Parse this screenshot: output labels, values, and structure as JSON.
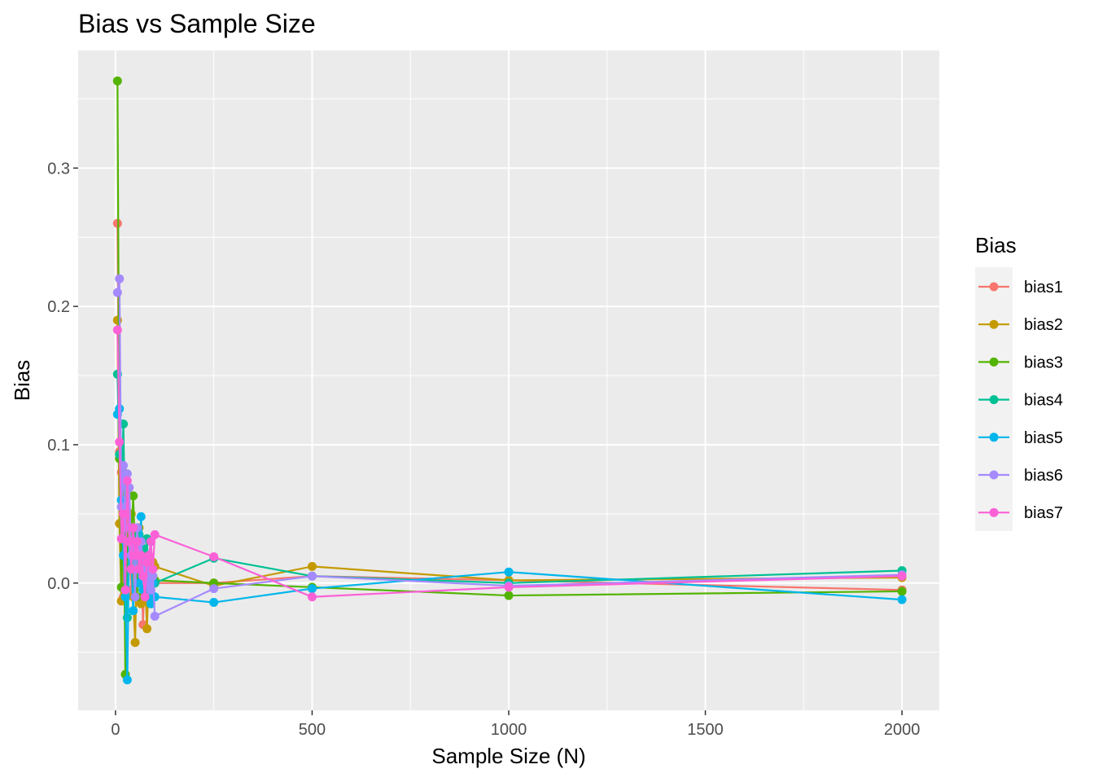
{
  "chart_data": {
    "type": "line",
    "title": "Bias vs Sample Size",
    "xlabel": "Sample Size (N)",
    "ylabel": "Bias",
    "xlim": [
      -95,
      2095
    ],
    "ylim": [
      -0.092,
      0.385
    ],
    "x_ticks": [
      0,
      500,
      1000,
      1500,
      2000
    ],
    "x_tick_labels": [
      "0",
      "500",
      "1000",
      "1500",
      "2000"
    ],
    "y_ticks": [
      0.0,
      0.1,
      0.2,
      0.3
    ],
    "y_tick_labels": [
      "0.0",
      "0.1",
      "0.2",
      "0.3"
    ],
    "grid": true,
    "legend_title": "Bias",
    "legend_position": "right",
    "series": [
      {
        "name": "bias1",
        "color": "#F8766D",
        "x": [
          5,
          10,
          15,
          20,
          25,
          30,
          35,
          40,
          45,
          50,
          55,
          60,
          65,
          70,
          75,
          80,
          85,
          90,
          95,
          100,
          250,
          500,
          1000,
          2000
        ],
        "y": [
          0.26,
          0.095,
          0.08,
          -0.01,
          0.07,
          0.05,
          0.04,
          -0.005,
          0.03,
          0.025,
          0.01,
          0.03,
          0.02,
          -0.03,
          0.015,
          0.005,
          -0.01,
          0.005,
          0.0,
          0.0,
          0.0,
          0.005,
          0.002,
          -0.005
        ]
      },
      {
        "name": "bias2",
        "color": "#C49A00",
        "x": [
          5,
          10,
          15,
          20,
          25,
          30,
          35,
          40,
          45,
          50,
          55,
          60,
          65,
          70,
          75,
          80,
          85,
          90,
          95,
          100,
          250,
          500,
          1000,
          2000
        ],
        "y": [
          0.19,
          0.043,
          -0.013,
          0.06,
          0.01,
          0.07,
          0.02,
          0.05,
          -0.01,
          -0.043,
          0.03,
          0.04,
          -0.015,
          0.02,
          0.005,
          -0.033,
          0.01,
          0.0,
          0.015,
          0.012,
          -0.002,
          0.012,
          0.002,
          0.004
        ]
      },
      {
        "name": "bias3",
        "color": "#53B400",
        "x": [
          5,
          10,
          15,
          20,
          25,
          30,
          35,
          40,
          45,
          50,
          55,
          60,
          65,
          70,
          75,
          80,
          85,
          90,
          95,
          100,
          250,
          500,
          1000,
          2000
        ],
        "y": [
          0.363,
          0.09,
          -0.003,
          0.08,
          -0.066,
          0.04,
          0.01,
          0.03,
          0.063,
          0.02,
          -0.01,
          0.03,
          0.02,
          -0.005,
          0.01,
          0.005,
          0.0,
          0.0,
          0.005,
          0.002,
          0.0,
          -0.003,
          -0.009,
          -0.006
        ]
      },
      {
        "name": "bias4",
        "color": "#00C094",
        "x": [
          5,
          10,
          15,
          20,
          25,
          30,
          35,
          40,
          45,
          50,
          55,
          60,
          65,
          70,
          75,
          80,
          85,
          90,
          95,
          100,
          250,
          500,
          1000,
          2000
        ],
        "y": [
          0.151,
          0.093,
          0.06,
          0.115,
          0.03,
          -0.025,
          0.04,
          0.01,
          0.02,
          0.03,
          0.02,
          0.035,
          0.01,
          0.025,
          0.015,
          0.032,
          -0.005,
          0.01,
          0.002,
          0.0,
          0.018,
          0.005,
          0.0,
          0.009
        ]
      },
      {
        "name": "bias5",
        "color": "#00B6EB",
        "x": [
          5,
          10,
          15,
          20,
          25,
          30,
          35,
          40,
          45,
          50,
          55,
          60,
          65,
          70,
          75,
          80,
          85,
          90,
          95,
          100,
          250,
          500,
          1000,
          2000
        ],
        "y": [
          0.122,
          0.126,
          0.06,
          0.02,
          -0.01,
          -0.07,
          0.04,
          0.02,
          -0.02,
          0.01,
          0.03,
          0.0,
          0.048,
          -0.005,
          0.015,
          -0.01,
          0.01,
          -0.015,
          0.0,
          -0.01,
          -0.014,
          -0.004,
          0.008,
          -0.012
        ]
      },
      {
        "name": "bias6",
        "color": "#A58AFF",
        "x": [
          5,
          10,
          15,
          20,
          25,
          30,
          35,
          40,
          45,
          50,
          55,
          60,
          65,
          70,
          75,
          80,
          85,
          90,
          95,
          100,
          250,
          500,
          1000,
          2000
        ],
        "y": [
          0.21,
          0.22,
          0.055,
          0.085,
          0.04,
          0.079,
          0.069,
          0.02,
          0.03,
          -0.01,
          0.04,
          0.02,
          0.03,
          0.01,
          0.015,
          0.0,
          0.01,
          -0.005,
          0.005,
          -0.024,
          -0.004,
          0.005,
          -0.002,
          0.006
        ]
      },
      {
        "name": "bias7",
        "color": "#FB61D7",
        "x": [
          5,
          10,
          15,
          20,
          25,
          30,
          35,
          40,
          45,
          50,
          55,
          60,
          65,
          70,
          75,
          80,
          85,
          90,
          95,
          100,
          250,
          500,
          1000,
          2000
        ],
        "y": [
          0.183,
          0.102,
          0.032,
          0.05,
          -0.005,
          0.074,
          0.03,
          0.01,
          0.04,
          0.02,
          0.03,
          0.01,
          0.02,
          0.005,
          -0.01,
          0.015,
          0.02,
          0.03,
          0.01,
          0.035,
          0.019,
          -0.01,
          -0.003,
          0.005
        ]
      }
    ]
  }
}
